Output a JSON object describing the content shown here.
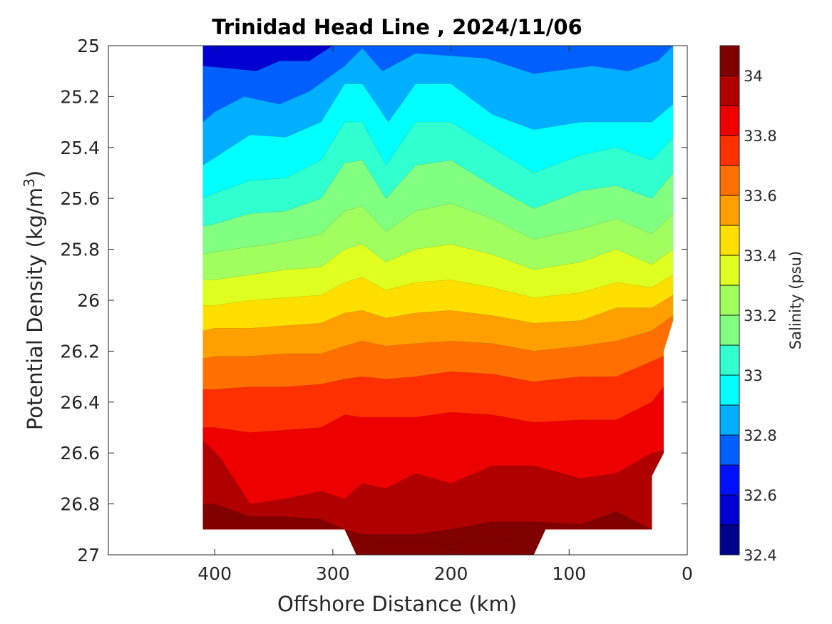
{
  "chart_data": {
    "type": "heatmap",
    "title": "Trinidad Head Line , 2024/11/06",
    "xlabel": "Offshore Distance (km)",
    "ylabel_main": "Potential Density (kg/m",
    "ylabel_sup": "3",
    "ylabel_end": ")",
    "colorbar_label": "Salinity (psu)",
    "x_ticks": [
      "400",
      "300",
      "200",
      "100",
      "0"
    ],
    "y_ticks": [
      "25",
      "25.2",
      "25.4",
      "25.6",
      "25.8",
      "26",
      "26.2",
      "26.4",
      "26.6",
      "26.8",
      "27"
    ],
    "cbar_ticks": [
      "32.4",
      "32.6",
      "32.8",
      "33",
      "33.2",
      "33.4",
      "33.6",
      "33.8",
      "34"
    ],
    "xlim": [
      490,
      0
    ],
    "xdir": "reverse",
    "ylim": [
      25,
      27
    ],
    "ydir": "reverse",
    "clim": [
      32.4,
      34.1
    ],
    "level_step": 0.1,
    "level_colors": [
      "#00008f",
      "#0000d0",
      "#0010ff",
      "#0060ff",
      "#00afff",
      "#00ffff",
      "#30ffd0",
      "#80ff80",
      "#a0ff5f",
      "#dfff20",
      "#ffdf00",
      "#ffa000",
      "#ff7000",
      "#ff3000",
      "#ef0000",
      "#b00000",
      "#800000"
    ],
    "contour_lines": [
      {
        "level": 32.7,
        "x": [
          300,
          320,
          345,
          365,
          385,
          410
        ],
        "y": [
          25,
          25.06,
          25.06,
          25.1,
          25.09,
          25.08
        ]
      },
      {
        "level": 32.8,
        "x": [
          12,
          25,
          50,
          80,
          130,
          170,
          230,
          258,
          275,
          290,
          320,
          345,
          375,
          400,
          410
        ],
        "y": [
          25,
          25.06,
          25.1,
          25.08,
          25.11,
          25.05,
          25.03,
          25.1,
          25.01,
          25.08,
          25.18,
          25.23,
          25.2,
          25.26,
          25.3
        ]
      },
      {
        "level": 32.9,
        "x": [
          12,
          30,
          60,
          90,
          130,
          165,
          200,
          230,
          253,
          275,
          290,
          310,
          340,
          370,
          400,
          410
        ],
        "y": [
          25.23,
          25.3,
          25.3,
          25.3,
          25.33,
          25.27,
          25.15,
          25.15,
          25.3,
          25.15,
          25.15,
          25.3,
          25.36,
          25.35,
          25.44,
          25.47
        ]
      },
      {
        "level": 33.0,
        "x": [
          12,
          30,
          60,
          90,
          130,
          165,
          200,
          230,
          255,
          275,
          290,
          310,
          340,
          370,
          400,
          410
        ],
        "y": [
          25.36,
          25.45,
          25.4,
          25.43,
          25.5,
          25.4,
          25.3,
          25.3,
          25.47,
          25.3,
          25.3,
          25.45,
          25.52,
          25.53,
          25.58,
          25.6
        ]
      },
      {
        "level": 33.1,
        "x": [
          12,
          30,
          60,
          90,
          130,
          165,
          200,
          230,
          255,
          275,
          290,
          310,
          340,
          370,
          400,
          410
        ],
        "y": [
          25.5,
          25.6,
          25.55,
          25.57,
          25.64,
          25.55,
          25.45,
          25.47,
          25.6,
          25.45,
          25.46,
          25.6,
          25.65,
          25.66,
          25.7,
          25.71
        ]
      },
      {
        "level": 33.2,
        "x": [
          12,
          30,
          60,
          90,
          130,
          165,
          200,
          230,
          255,
          275,
          290,
          310,
          340,
          370,
          400,
          410
        ],
        "y": [
          25.66,
          25.74,
          25.68,
          25.72,
          25.76,
          25.68,
          25.62,
          25.65,
          25.73,
          25.63,
          25.65,
          25.74,
          25.77,
          25.79,
          25.81,
          25.82
        ]
      },
      {
        "level": 33.3,
        "x": [
          12,
          30,
          60,
          90,
          130,
          165,
          200,
          230,
          255,
          275,
          290,
          310,
          340,
          370,
          400,
          410
        ],
        "y": [
          25.8,
          25.86,
          25.8,
          25.85,
          25.88,
          25.82,
          25.78,
          25.8,
          25.85,
          25.78,
          25.8,
          25.87,
          25.88,
          25.9,
          25.92,
          25.92
        ]
      },
      {
        "level": 33.4,
        "x": [
          12,
          30,
          60,
          90,
          130,
          165,
          200,
          230,
          255,
          275,
          290,
          310,
          340,
          370,
          400,
          410
        ],
        "y": [
          25.9,
          25.95,
          25.93,
          25.97,
          25.99,
          25.95,
          25.92,
          25.93,
          25.96,
          25.91,
          25.93,
          25.98,
          25.99,
          26.0,
          26.02,
          26.02
        ]
      },
      {
        "level": 33.5,
        "x": [
          12,
          30,
          60,
          90,
          130,
          165,
          200,
          230,
          255,
          275,
          290,
          310,
          340,
          370,
          400,
          410
        ],
        "y": [
          25.98,
          26.03,
          26.03,
          26.08,
          26.09,
          26.06,
          26.04,
          26.05,
          26.07,
          26.04,
          26.05,
          26.09,
          26.1,
          26.11,
          26.11,
          26.12
        ]
      },
      {
        "level": 33.6,
        "x": [
          12,
          30,
          60,
          90,
          130,
          165,
          200,
          230,
          255,
          275,
          290,
          310,
          340,
          370,
          400,
          410
        ],
        "y": [
          26.06,
          26.12,
          26.16,
          26.18,
          26.2,
          26.17,
          26.16,
          26.17,
          26.18,
          26.16,
          26.18,
          26.21,
          26.21,
          26.22,
          26.22,
          26.23
        ]
      },
      {
        "level": 33.7,
        "x": [
          20,
          30,
          60,
          90,
          130,
          165,
          200,
          230,
          255,
          275,
          290,
          310,
          340,
          370,
          400,
          410
        ],
        "y": [
          26.22,
          26.24,
          26.3,
          26.3,
          26.32,
          26.29,
          26.28,
          26.3,
          26.31,
          26.3,
          26.31,
          26.33,
          26.34,
          26.34,
          26.35,
          26.35
        ]
      },
      {
        "level": 33.8,
        "x": [
          20,
          30,
          60,
          90,
          130,
          165,
          200,
          230,
          255,
          275,
          290,
          310,
          340,
          370,
          400,
          410
        ],
        "y": [
          26.34,
          26.4,
          26.47,
          26.47,
          26.48,
          26.45,
          26.44,
          26.46,
          26.46,
          26.46,
          26.45,
          26.5,
          26.51,
          26.52,
          26.5,
          26.5
        ]
      },
      {
        "level": 33.9,
        "x": [
          20,
          30,
          60,
          90,
          130,
          165,
          200,
          230,
          255,
          275,
          290,
          310,
          340,
          370,
          395,
          410
        ],
        "y": [
          26.59,
          26.6,
          26.68,
          26.7,
          26.65,
          26.65,
          26.72,
          26.68,
          26.74,
          26.72,
          26.78,
          26.75,
          26.78,
          26.8,
          26.62,
          26.55
        ]
      },
      {
        "level": 34.0,
        "x": [
          30,
          60,
          90,
          130,
          165,
          200,
          230,
          255,
          275,
          290,
          310,
          340,
          370,
          400,
          410
        ],
        "y": [
          26.9,
          26.83,
          26.88,
          26.87,
          26.87,
          26.9,
          26.92,
          26.92,
          26.92,
          26.9,
          26.86,
          26.85,
          26.85,
          26.8,
          26.8
        ]
      },
      {
        "level": 34.1,
        "x": [
          120,
          160,
          200,
          240,
          260,
          280
        ],
        "y": [
          27.0,
          26.93,
          26.96,
          26.95,
          26.95,
          27.0
        ]
      }
    ],
    "data_boundary": {
      "x": [
        410,
        12,
        12,
        20,
        20,
        30,
        30,
        120,
        130,
        280,
        290,
        410
      ],
      "y": [
        25,
        25,
        26.08,
        26.2,
        26.6,
        26.69,
        26.9,
        26.9,
        27.0,
        27.0,
        26.9,
        26.9
      ]
    }
  }
}
